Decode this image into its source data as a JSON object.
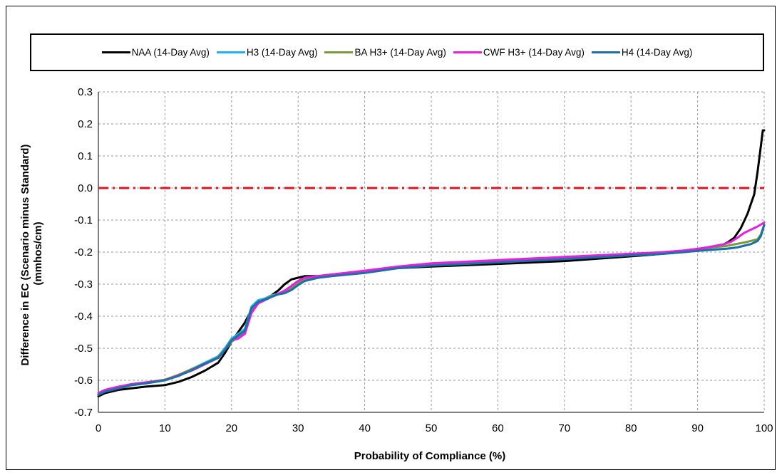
{
  "chart_data": {
    "type": "line",
    "title": "",
    "xlabel": "Probability of Compliance (%)",
    "ylabel": "Difference in EC (Scenario minus Standard) (mmhos/cm)",
    "ylabel_lines": [
      "Difference in EC (Scenario minus Standard)",
      "(mmhos/cm)"
    ],
    "xlim": [
      0,
      100
    ],
    "ylim": [
      -0.7,
      0.3
    ],
    "x_ticks": [
      0,
      10,
      20,
      30,
      40,
      50,
      60,
      70,
      80,
      90,
      100
    ],
    "y_ticks": [
      0.3,
      0.2,
      0.1,
      0.0,
      -0.1,
      -0.2,
      -0.3,
      -0.4,
      -0.5,
      -0.6,
      -0.7
    ],
    "x_tick_labels": [
      "0",
      "10",
      "20",
      "30",
      "40",
      "50",
      "60",
      "70",
      "80",
      "90",
      "100"
    ],
    "y_tick_labels": [
      "0.3",
      "0.2",
      "0.1",
      "0.0",
      "-0.1",
      "-0.2",
      "-0.3",
      "-0.4",
      "-0.5",
      "-0.6",
      "-0.7"
    ],
    "grid": true,
    "legend_position": "top",
    "reference_line": {
      "y": 0.0,
      "color": "#e0141e",
      "style": "dash-dot"
    },
    "series": [
      {
        "name": "NAA (14-Day Avg)",
        "color": "#000000",
        "x": [
          0,
          1,
          3,
          5,
          7,
          10,
          12,
          14,
          16,
          18,
          19,
          20,
          21,
          22,
          23,
          24,
          25,
          26,
          27,
          28,
          29,
          30,
          31,
          33,
          35,
          40,
          45,
          50,
          60,
          70,
          80,
          85,
          88,
          90,
          92,
          93.5,
          94.5,
          95.5,
          96.5,
          97.5,
          98,
          98.5,
          99,
          99.5,
          99.8,
          100
        ],
        "y": [
          -0.65,
          -0.64,
          -0.63,
          -0.625,
          -0.62,
          -0.615,
          -0.605,
          -0.59,
          -0.57,
          -0.545,
          -0.515,
          -0.48,
          -0.45,
          -0.42,
          -0.38,
          -0.355,
          -0.345,
          -0.335,
          -0.32,
          -0.3,
          -0.285,
          -0.28,
          -0.275,
          -0.275,
          -0.27,
          -0.26,
          -0.25,
          -0.245,
          -0.237,
          -0.228,
          -0.213,
          -0.205,
          -0.195,
          -0.19,
          -0.185,
          -0.18,
          -0.17,
          -0.155,
          -0.125,
          -0.08,
          -0.05,
          -0.02,
          0.05,
          0.13,
          0.18,
          0.18
        ]
      },
      {
        "name": "H3 (14-Day Avg)",
        "color": "#1fb4e6",
        "x": [
          0,
          1,
          3,
          5,
          7,
          10,
          12,
          14,
          16,
          18,
          19,
          20,
          21,
          22,
          23,
          24,
          25,
          26,
          27,
          28,
          29,
          30,
          31,
          33,
          35,
          40,
          45,
          50,
          60,
          70,
          80,
          85,
          88,
          90,
          92,
          94,
          95,
          96,
          97,
          98,
          99,
          99.5,
          100
        ],
        "y": [
          -0.645,
          -0.635,
          -0.625,
          -0.615,
          -0.61,
          -0.6,
          -0.585,
          -0.565,
          -0.545,
          -0.525,
          -0.5,
          -0.47,
          -0.455,
          -0.44,
          -0.37,
          -0.35,
          -0.345,
          -0.335,
          -0.33,
          -0.325,
          -0.315,
          -0.3,
          -0.29,
          -0.28,
          -0.275,
          -0.265,
          -0.25,
          -0.24,
          -0.23,
          -0.22,
          -0.21,
          -0.205,
          -0.2,
          -0.195,
          -0.192,
          -0.19,
          -0.188,
          -0.185,
          -0.18,
          -0.175,
          -0.165,
          -0.15,
          -0.115
        ]
      },
      {
        "name": "BA H3+ (14-Day Avg)",
        "color": "#7a9a3a",
        "x": [
          0,
          1,
          3,
          5,
          7,
          10,
          12,
          14,
          16,
          18,
          19,
          20,
          21,
          22,
          23,
          24,
          25,
          26,
          27,
          28,
          29,
          30,
          31,
          33,
          35,
          40,
          45,
          50,
          60,
          70,
          80,
          85,
          88,
          90,
          92,
          94,
          95,
          96,
          97,
          98,
          99,
          99.5,
          100
        ],
        "y": [
          -0.645,
          -0.632,
          -0.622,
          -0.612,
          -0.607,
          -0.598,
          -0.583,
          -0.565,
          -0.548,
          -0.528,
          -0.505,
          -0.48,
          -0.465,
          -0.45,
          -0.385,
          -0.355,
          -0.348,
          -0.338,
          -0.33,
          -0.322,
          -0.31,
          -0.295,
          -0.285,
          -0.275,
          -0.272,
          -0.262,
          -0.248,
          -0.238,
          -0.228,
          -0.218,
          -0.208,
          -0.2,
          -0.195,
          -0.19,
          -0.185,
          -0.182,
          -0.178,
          -0.174,
          -0.17,
          -0.165,
          -0.16,
          -0.145,
          -0.115
        ]
      },
      {
        "name": "CWF H3+ (14-Day Avg)",
        "color": "#e81fe0",
        "x": [
          0,
          1,
          3,
          5,
          7,
          10,
          12,
          14,
          16,
          18,
          19,
          20,
          21,
          22,
          23,
          24,
          25,
          26,
          27,
          28,
          29,
          30,
          31,
          33,
          35,
          40,
          45,
          50,
          60,
          70,
          80,
          85,
          88,
          90,
          92,
          94,
          95,
          96,
          97,
          98,
          99,
          100
        ],
        "y": [
          -0.64,
          -0.63,
          -0.62,
          -0.612,
          -0.607,
          -0.6,
          -0.585,
          -0.57,
          -0.55,
          -0.53,
          -0.505,
          -0.475,
          -0.47,
          -0.455,
          -0.39,
          -0.36,
          -0.35,
          -0.34,
          -0.33,
          -0.32,
          -0.305,
          -0.29,
          -0.28,
          -0.275,
          -0.27,
          -0.258,
          -0.245,
          -0.235,
          -0.225,
          -0.215,
          -0.205,
          -0.2,
          -0.195,
          -0.19,
          -0.183,
          -0.175,
          -0.168,
          -0.155,
          -0.14,
          -0.13,
          -0.12,
          -0.108
        ]
      },
      {
        "name": "H4 (14-Day Avg)",
        "color": "#1c6fa8",
        "x": [
          0,
          1,
          3,
          5,
          7,
          10,
          12,
          14,
          16,
          18,
          19,
          20,
          21,
          22,
          23,
          24,
          25,
          26,
          27,
          28,
          29,
          30,
          31,
          33,
          35,
          40,
          45,
          50,
          60,
          70,
          80,
          85,
          88,
          90,
          92,
          94,
          95,
          96,
          97,
          98,
          99,
          99.5,
          100
        ],
        "y": [
          -0.645,
          -0.635,
          -0.625,
          -0.615,
          -0.61,
          -0.6,
          -0.587,
          -0.568,
          -0.548,
          -0.53,
          -0.505,
          -0.475,
          -0.46,
          -0.445,
          -0.375,
          -0.355,
          -0.348,
          -0.34,
          -0.332,
          -0.328,
          -0.318,
          -0.303,
          -0.29,
          -0.28,
          -0.275,
          -0.265,
          -0.25,
          -0.242,
          -0.232,
          -0.222,
          -0.21,
          -0.205,
          -0.2,
          -0.196,
          -0.193,
          -0.19,
          -0.188,
          -0.185,
          -0.18,
          -0.175,
          -0.165,
          -0.15,
          -0.115
        ]
      }
    ]
  }
}
